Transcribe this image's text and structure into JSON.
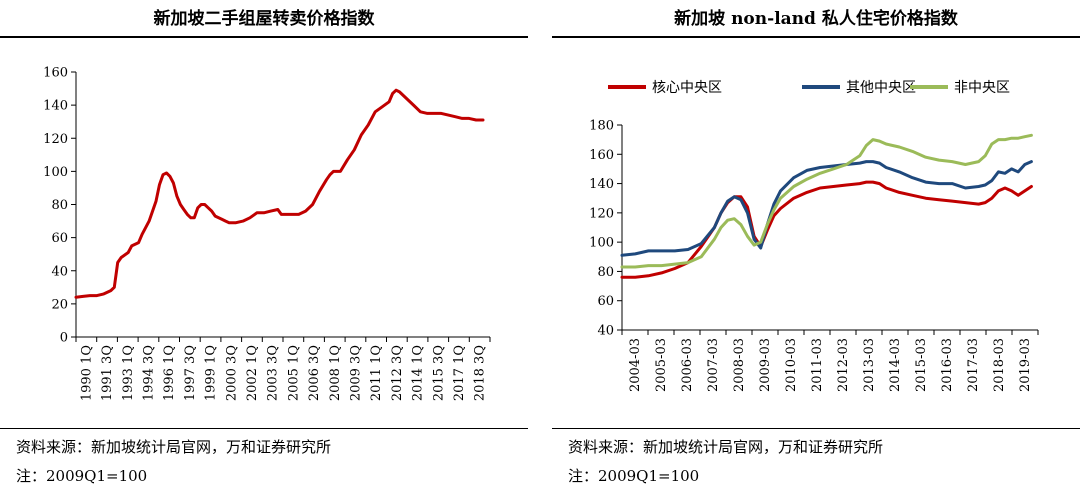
{
  "left": {
    "title": "新加坡二手组屋转卖价格指数",
    "source": "资料来源：新加坡统计局官网，万和证券研究所",
    "note": "注：2009Q1=100"
  },
  "right": {
    "title": "新加坡 non-land 私人住宅价格指数",
    "source": "资料来源：新加坡统计局官网，万和证券研究所",
    "note": "注：2009Q1=100"
  },
  "colors": {
    "core": "#c00000",
    "rest": "#1f497d",
    "outside": "#9bbb59",
    "hdb": "#c00000"
  },
  "chart_data": [
    {
      "type": "line",
      "title": "新加坡二手组屋转卖价格指数",
      "ylim": [
        0,
        160
      ],
      "yticks": [
        0,
        20,
        40,
        60,
        80,
        100,
        120,
        140,
        160
      ],
      "xlabels": [
        "1990 1Q",
        "1991 3Q",
        "1993 1Q",
        "1994 3Q",
        "1996 1Q",
        "1997 3Q",
        "1999 1Q",
        "2000 3Q",
        "2002 1Q",
        "2003 3Q",
        "2005 1Q",
        "2006 3Q",
        "2008 1Q",
        "2009 3Q",
        "2011 1Q",
        "2012 3Q",
        "2014 1Q",
        "2015 3Q",
        "2017 1Q",
        "2018 3Q"
      ],
      "x_start": 1990.0,
      "x_end": 2019.75,
      "series": [
        {
          "color": "#c00000",
          "points": [
            [
              1990.0,
              24
            ],
            [
              1990.5,
              24.5
            ],
            [
              1991.0,
              25
            ],
            [
              1991.5,
              25
            ],
            [
              1992.0,
              26
            ],
            [
              1992.5,
              28
            ],
            [
              1992.75,
              30
            ],
            [
              1993.0,
              45
            ],
            [
              1993.25,
              48
            ],
            [
              1993.75,
              51
            ],
            [
              1994.0,
              55
            ],
            [
              1994.5,
              57
            ],
            [
              1994.75,
              62
            ],
            [
              1995.25,
              70
            ],
            [
              1995.75,
              82
            ],
            [
              1996.0,
              92
            ],
            [
              1996.25,
              98
            ],
            [
              1996.5,
              99
            ],
            [
              1996.75,
              97
            ],
            [
              1997.0,
              93
            ],
            [
              1997.25,
              85
            ],
            [
              1997.5,
              80
            ],
            [
              1997.75,
              77
            ],
            [
              1998.0,
              74
            ],
            [
              1998.25,
              72
            ],
            [
              1998.5,
              72
            ],
            [
              1998.75,
              78
            ],
            [
              1999.0,
              80
            ],
            [
              1999.25,
              80
            ],
            [
              1999.5,
              78
            ],
            [
              1999.75,
              76
            ],
            [
              2000.0,
              73
            ],
            [
              2000.5,
              71
            ],
            [
              2000.75,
              70
            ],
            [
              2001.0,
              69
            ],
            [
              2001.5,
              69
            ],
            [
              2002.0,
              70
            ],
            [
              2002.5,
              72
            ],
            [
              2003.0,
              75
            ],
            [
              2003.5,
              75
            ],
            [
              2004.0,
              76
            ],
            [
              2004.5,
              77
            ],
            [
              2004.75,
              74
            ],
            [
              2005.5,
              74
            ],
            [
              2006.0,
              74
            ],
            [
              2006.5,
              76
            ],
            [
              2007.0,
              80
            ],
            [
              2007.5,
              88
            ],
            [
              2008.0,
              95
            ],
            [
              2008.25,
              98
            ],
            [
              2008.5,
              100
            ],
            [
              2009.0,
              100
            ],
            [
              2009.5,
              107
            ],
            [
              2010.0,
              113
            ],
            [
              2010.5,
              122
            ],
            [
              2011.0,
              128
            ],
            [
              2011.5,
              136
            ],
            [
              2012.0,
              139
            ],
            [
              2012.5,
              142
            ],
            [
              2012.75,
              147
            ],
            [
              2013.0,
              149
            ],
            [
              2013.25,
              148
            ],
            [
              2013.75,
              144
            ],
            [
              2014.25,
              140
            ],
            [
              2014.75,
              136
            ],
            [
              2015.25,
              135
            ],
            [
              2015.75,
              135
            ],
            [
              2016.25,
              135
            ],
            [
              2016.75,
              134
            ],
            [
              2017.25,
              133
            ],
            [
              2017.75,
              132
            ],
            [
              2018.25,
              132
            ],
            [
              2018.75,
              131
            ],
            [
              2019.25,
              131
            ]
          ]
        }
      ]
    },
    {
      "type": "line",
      "title": "新加坡 non-land 私人住宅价格指数",
      "ylim": [
        40,
        180
      ],
      "yticks": [
        40,
        60,
        80,
        100,
        120,
        140,
        160,
        180
      ],
      "xlabels": [
        "2004-03",
        "2005-03",
        "2006-03",
        "2007-03",
        "2008-03",
        "2009-03",
        "2010-03",
        "2011-03",
        "2012-03",
        "2013-03",
        "2014-03",
        "2015-03",
        "2016-03",
        "2017-03",
        "2018-03",
        "2019-03"
      ],
      "x_start": 2004.0,
      "x_end": 2019.75,
      "series": [
        {
          "name": "核心中央区",
          "color": "#c00000",
          "points": [
            [
              2004.0,
              76
            ],
            [
              2004.5,
              76
            ],
            [
              2005.0,
              77
            ],
            [
              2005.5,
              79
            ],
            [
              2006.0,
              82
            ],
            [
              2006.5,
              86
            ],
            [
              2007.0,
              97
            ],
            [
              2007.5,
              110
            ],
            [
              2007.75,
              120
            ],
            [
              2008.0,
              127
            ],
            [
              2008.25,
              131
            ],
            [
              2008.5,
              131
            ],
            [
              2008.75,
              124
            ],
            [
              2009.0,
              104
            ],
            [
              2009.25,
              97
            ],
            [
              2009.5,
              108
            ],
            [
              2009.75,
              118
            ],
            [
              2010.0,
              123
            ],
            [
              2010.5,
              130
            ],
            [
              2011.0,
              134
            ],
            [
              2011.5,
              137
            ],
            [
              2012.0,
              138
            ],
            [
              2012.5,
              139
            ],
            [
              2013.0,
              140
            ],
            [
              2013.25,
              141
            ],
            [
              2013.5,
              141
            ],
            [
              2013.75,
              140
            ],
            [
              2014.0,
              137
            ],
            [
              2014.5,
              134
            ],
            [
              2015.0,
              132
            ],
            [
              2015.5,
              130
            ],
            [
              2016.0,
              129
            ],
            [
              2016.5,
              128
            ],
            [
              2017.0,
              127
            ],
            [
              2017.5,
              126
            ],
            [
              2017.75,
              127
            ],
            [
              2018.0,
              130
            ],
            [
              2018.25,
              135
            ],
            [
              2018.5,
              137
            ],
            [
              2018.75,
              135
            ],
            [
              2019.0,
              132
            ],
            [
              2019.25,
              135
            ],
            [
              2019.5,
              138
            ]
          ]
        },
        {
          "name": "其他中央区",
          "color": "#1f497d",
          "points": [
            [
              2004.0,
              91
            ],
            [
              2004.5,
              92
            ],
            [
              2005.0,
              94
            ],
            [
              2005.5,
              94
            ],
            [
              2006.0,
              94
            ],
            [
              2006.5,
              95
            ],
            [
              2007.0,
              99
            ],
            [
              2007.5,
              110
            ],
            [
              2007.75,
              120
            ],
            [
              2008.0,
              128
            ],
            [
              2008.25,
              131
            ],
            [
              2008.5,
              129
            ],
            [
              2008.75,
              120
            ],
            [
              2009.0,
              102
            ],
            [
              2009.25,
              96
            ],
            [
              2009.5,
              112
            ],
            [
              2009.75,
              126
            ],
            [
              2010.0,
              135
            ],
            [
              2010.5,
              144
            ],
            [
              2011.0,
              149
            ],
            [
              2011.5,
              151
            ],
            [
              2012.0,
              152
            ],
            [
              2012.5,
              153
            ],
            [
              2013.0,
              154
            ],
            [
              2013.25,
              155
            ],
            [
              2013.5,
              155
            ],
            [
              2013.75,
              154
            ],
            [
              2014.0,
              151
            ],
            [
              2014.5,
              148
            ],
            [
              2015.0,
              144
            ],
            [
              2015.5,
              141
            ],
            [
              2016.0,
              140
            ],
            [
              2016.5,
              140
            ],
            [
              2017.0,
              137
            ],
            [
              2017.5,
              138
            ],
            [
              2017.75,
              139
            ],
            [
              2018.0,
              142
            ],
            [
              2018.25,
              148
            ],
            [
              2018.5,
              147
            ],
            [
              2018.75,
              150
            ],
            [
              2019.0,
              148
            ],
            [
              2019.25,
              153
            ],
            [
              2019.5,
              155
            ]
          ]
        },
        {
          "name": "非中央区",
          "color": "#9bbb59",
          "points": [
            [
              2004.0,
              83
            ],
            [
              2004.5,
              83
            ],
            [
              2005.0,
              84
            ],
            [
              2005.5,
              84
            ],
            [
              2006.0,
              85
            ],
            [
              2006.5,
              86
            ],
            [
              2007.0,
              90
            ],
            [
              2007.5,
              102
            ],
            [
              2007.75,
              110
            ],
            [
              2008.0,
              115
            ],
            [
              2008.25,
              116
            ],
            [
              2008.5,
              112
            ],
            [
              2008.75,
              104
            ],
            [
              2009.0,
              98
            ],
            [
              2009.25,
              100
            ],
            [
              2009.5,
              112
            ],
            [
              2009.75,
              122
            ],
            [
              2010.0,
              130
            ],
            [
              2010.5,
              138
            ],
            [
              2011.0,
              143
            ],
            [
              2011.5,
              147
            ],
            [
              2012.0,
              150
            ],
            [
              2012.5,
              153
            ],
            [
              2013.0,
              159
            ],
            [
              2013.25,
              166
            ],
            [
              2013.5,
              170
            ],
            [
              2013.75,
              169
            ],
            [
              2014.0,
              167
            ],
            [
              2014.5,
              165
            ],
            [
              2015.0,
              162
            ],
            [
              2015.5,
              158
            ],
            [
              2016.0,
              156
            ],
            [
              2016.5,
              155
            ],
            [
              2017.0,
              153
            ],
            [
              2017.5,
              155
            ],
            [
              2017.75,
              159
            ],
            [
              2018.0,
              167
            ],
            [
              2018.25,
              170
            ],
            [
              2018.5,
              170
            ],
            [
              2018.75,
              171
            ],
            [
              2019.0,
              171
            ],
            [
              2019.25,
              172
            ],
            [
              2019.5,
              173
            ]
          ]
        }
      ]
    }
  ]
}
